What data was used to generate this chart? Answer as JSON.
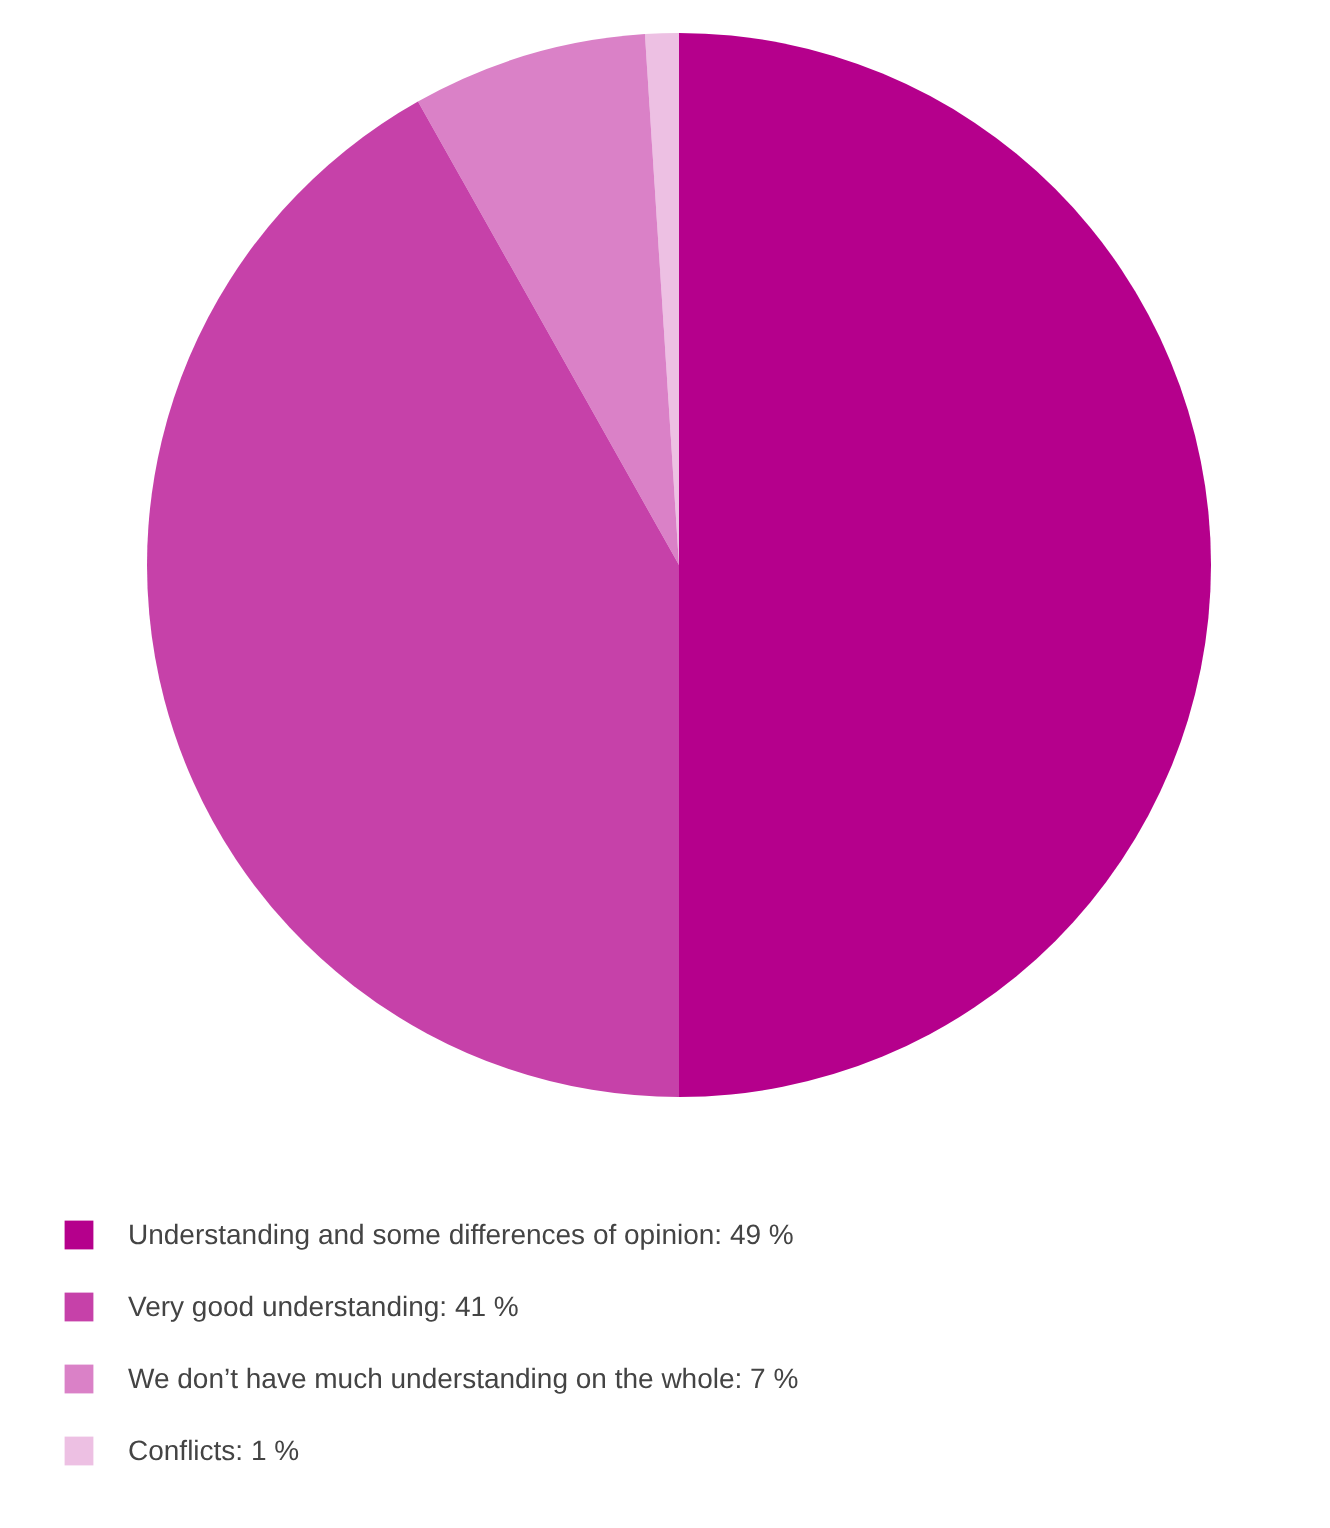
{
  "chart_data": {
    "type": "pie",
    "categories": [
      "Understanding and some differences of opinion",
      "Very good understanding",
      "We don’t have much understanding on the whole",
      "Conflicts"
    ],
    "values": [
      49,
      41,
      7,
      1
    ],
    "value_labels": [
      "49 %",
      "41 %",
      "7 %",
      "1 %"
    ],
    "colors": [
      "#b5008c",
      "#c641a9",
      "#da81c7",
      "#edc0e3"
    ],
    "legend": "bottom"
  }
}
